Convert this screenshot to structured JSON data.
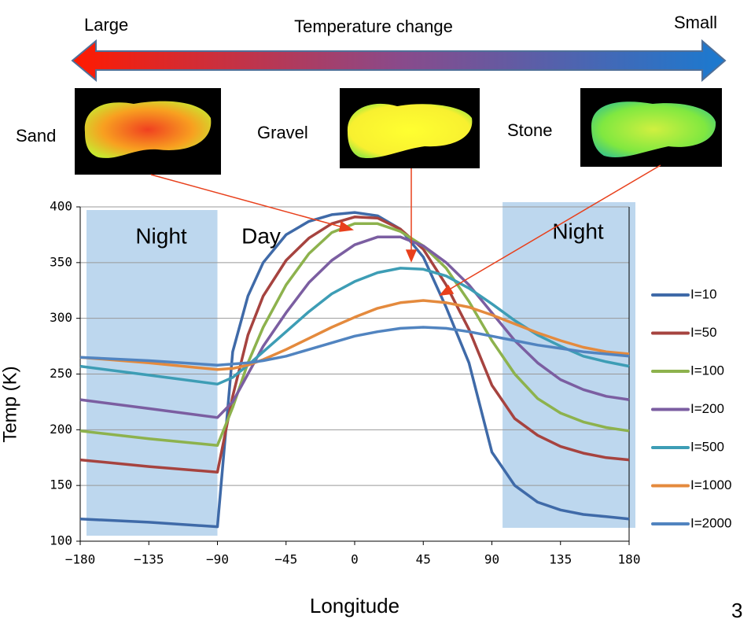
{
  "chart_data": {
    "type": "line",
    "header": {
      "left": "Large",
      "center": "Temperature change",
      "right": "Small"
    },
    "samples": [
      "Sand",
      "Gravel",
      "Stone"
    ],
    "annotations": [
      "Night",
      "Day",
      "Night"
    ],
    "shaded_regions": [
      [
        -180,
        -90
      ],
      [
        97,
        180
      ]
    ],
    "xlabel": "Longitude",
    "ylabel": "Temp (K)",
    "page_number": "3",
    "x": [
      -180,
      -135,
      -90,
      -80,
      -70,
      -60,
      -45,
      -30,
      -15,
      0,
      15,
      30,
      45,
      60,
      75,
      90,
      105,
      120,
      135,
      150,
      165,
      180
    ],
    "xlim": [
      -180,
      180
    ],
    "xticks": [
      {
        "value": -180,
        "label": "−180"
      },
      {
        "value": -135,
        "label": "−135"
      },
      {
        "value": -90,
        "label": "−90"
      },
      {
        "value": -45,
        "label": "−45"
      },
      0,
      45,
      90,
      135,
      180
    ],
    "ylim": [
      100,
      400
    ],
    "yticks": [
      100,
      150,
      200,
      250,
      300,
      350,
      400
    ],
    "grid": true,
    "series": [
      {
        "name": "I=10",
        "color": "#3f6aa8",
        "values": [
          120,
          117,
          113,
          270,
          320,
          350,
          375,
          387,
          393,
          395,
          392,
          380,
          355,
          310,
          260,
          180,
          150,
          135,
          128,
          124,
          122,
          120
        ]
      },
      {
        "name": "I=50",
        "color": "#a6433f",
        "values": [
          173,
          167,
          162,
          230,
          285,
          320,
          352,
          372,
          385,
          391,
          390,
          380,
          362,
          330,
          290,
          240,
          210,
          195,
          185,
          179,
          175,
          173
        ]
      },
      {
        "name": "I=100",
        "color": "#8db24d",
        "values": [
          199,
          192,
          186,
          220,
          260,
          292,
          330,
          358,
          377,
          385,
          385,
          378,
          365,
          345,
          315,
          280,
          250,
          228,
          215,
          207,
          202,
          199
        ]
      },
      {
        "name": "I=200",
        "color": "#7b5ea1",
        "values": [
          227,
          219,
          211,
          225,
          250,
          275,
          305,
          332,
          352,
          366,
          373,
          373,
          365,
          350,
          330,
          305,
          280,
          260,
          245,
          236,
          230,
          227
        ]
      },
      {
        "name": "I=500",
        "color": "#3d9db5",
        "values": [
          257,
          249,
          241,
          247,
          258,
          270,
          288,
          306,
          322,
          333,
          341,
          345,
          344,
          338,
          327,
          313,
          298,
          285,
          275,
          266,
          261,
          257
        ]
      },
      {
        "name": "I=1000",
        "color": "#e48a3d",
        "values": [
          265,
          260,
          254,
          255,
          258,
          263,
          272,
          282,
          292,
          301,
          309,
          314,
          316,
          314,
          310,
          303,
          295,
          287,
          280,
          274,
          270,
          268
        ]
      },
      {
        "name": "I=2000",
        "color": "#5184c0",
        "values": [
          265,
          262,
          258,
          259,
          260,
          262,
          266,
          272,
          278,
          284,
          288,
          291,
          292,
          291,
          288,
          284,
          280,
          276,
          273,
          270,
          268,
          266
        ]
      }
    ]
  }
}
